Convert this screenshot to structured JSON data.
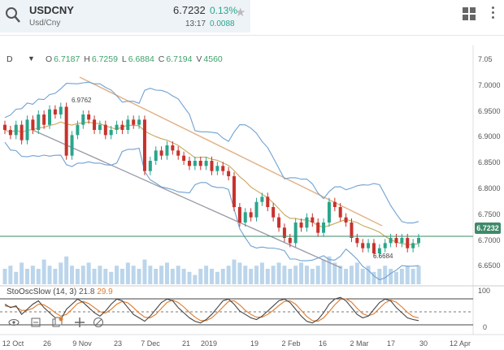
{
  "header": {
    "symbol": "USDCNY",
    "description": "Usd/Cny",
    "price": "6.7232",
    "change_pct": "0.13%",
    "time": "13:17",
    "change_abs": "0.0088",
    "icons": [
      "search-icon",
      "star-icon",
      "grid-icon",
      "more-vertical-icon"
    ]
  },
  "ohlc": {
    "interval": "D",
    "open_label": "O",
    "open": "6.7187",
    "high_label": "H",
    "high": "6.7259",
    "low_label": "L",
    "low": "6.6884",
    "close_label": "C",
    "close": "6.7194",
    "volume_label": "V",
    "volume": "4560"
  },
  "oscillator": {
    "name": "StoOscSlow (14, 3)",
    "k": "21.8",
    "d": "29.9",
    "scale_top": "100",
    "scale_bottom": "0"
  },
  "price_tag": "6.7232",
  "annotations": {
    "high_marker": "6.9762",
    "low_marker": "6.6684"
  },
  "colors": {
    "up": "#2aa58b",
    "candle": "#c8322c",
    "band": "#6fa1d2",
    "ma": "#c9a85a",
    "trend": "#e4b48a",
    "channel": "#9a9aa8",
    "volume": "#aacbe6",
    "stoch_k": "#444444",
    "stoch_d": "#e07a2b"
  },
  "chart_data": {
    "type": "candlestick",
    "yaxis_ticks": [
      "7.05",
      "7.0000",
      "6.9500",
      "6.9000",
      "6.8500",
      "6.8000",
      "6.7500",
      "6.7000",
      "6.6500"
    ],
    "xaxis_ticks": [
      "12 Oct",
      "26",
      "9 Nov",
      "23",
      "7 Dec",
      "21",
      "2019",
      "19",
      "2 Feb",
      "16",
      "2 Mar",
      "17",
      "30",
      "12 Apr"
    ],
    "ylim": [
      6.63,
      7.05
    ],
    "last_price": 6.7232,
    "close_series": [
      6.93,
      6.92,
      6.94,
      6.91,
      6.95,
      6.93,
      6.96,
      6.94,
      6.97,
      6.96,
      6.975,
      6.88,
      6.92,
      6.94,
      6.96,
      6.95,
      6.93,
      6.94,
      6.92,
      6.93,
      6.94,
      6.93,
      6.95,
      6.94,
      6.95,
      6.85,
      6.87,
      6.89,
      6.88,
      6.9,
      6.89,
      6.88,
      6.87,
      6.86,
      6.87,
      6.86,
      6.87,
      6.85,
      6.86,
      6.85,
      6.84,
      6.78,
      6.75,
      6.77,
      6.76,
      6.79,
      6.8,
      6.78,
      6.76,
      6.74,
      6.72,
      6.71,
      6.75,
      6.74,
      6.76,
      6.75,
      6.73,
      6.75,
      6.79,
      6.78,
      6.76,
      6.75,
      6.72,
      6.71,
      6.7,
      6.71,
      6.69,
      6.7,
      6.71,
      6.72,
      6.71,
      6.72,
      6.7,
      6.71,
      6.72
    ],
    "volume_series": [
      0.5,
      0.6,
      0.4,
      0.7,
      0.5,
      0.6,
      0.5,
      0.8,
      0.6,
      0.5,
      0.7,
      0.9,
      0.6,
      0.5,
      0.6,
      0.7,
      0.5,
      0.6,
      0.5,
      0.4,
      0.6,
      0.5,
      0.7,
      0.6,
      0.5,
      0.8,
      0.6,
      0.5,
      0.6,
      0.7,
      0.5,
      0.6,
      0.5,
      0.4,
      0.3,
      0.5,
      0.6,
      0.5,
      0.4,
      0.5,
      0.6,
      0.8,
      0.7,
      0.6,
      0.5,
      0.6,
      0.7,
      0.5,
      0.6,
      0.7,
      0.6,
      0.5,
      0.6,
      0.7,
      0.6,
      0.5,
      0.6,
      0.8,
      0.9,
      0.7,
      0.6,
      0.5,
      0.6,
      0.7,
      0.5,
      0.6,
      0.4,
      0.5,
      0.6,
      0.5,
      0.4,
      0.5,
      0.6,
      0.5,
      0.6
    ],
    "stoch_k": [
      70,
      60,
      65,
      40,
      55,
      70,
      80,
      60,
      45,
      30,
      25,
      55,
      70,
      85,
      75,
      60,
      45,
      35,
      50,
      70,
      85,
      80,
      60,
      40,
      30,
      20,
      35,
      55,
      75,
      85,
      80,
      60,
      45,
      30,
      20,
      15,
      25,
      40,
      60,
      80,
      85,
      70,
      50,
      40,
      30,
      25,
      35,
      50,
      65,
      80,
      85,
      75,
      55,
      35,
      20,
      15,
      25,
      45,
      70,
      85,
      90,
      80,
      60,
      40,
      30,
      35,
      55,
      75,
      85,
      80,
      60,
      45,
      30,
      25,
      22
    ],
    "stoch_d": [
      65,
      62,
      62,
      52,
      52,
      58,
      70,
      68,
      58,
      45,
      35,
      40,
      55,
      72,
      78,
      72,
      60,
      48,
      44,
      55,
      70,
      78,
      74,
      60,
      44,
      32,
      30,
      40,
      58,
      75,
      82,
      75,
      62,
      46,
      32,
      22,
      22,
      30,
      45,
      62,
      78,
      80,
      68,
      52,
      40,
      32,
      32,
      40,
      52,
      66,
      78,
      80,
      70,
      52,
      34,
      22,
      20,
      30,
      48,
      68,
      84,
      86,
      76,
      58,
      42,
      36,
      42,
      58,
      74,
      82,
      76,
      62,
      46,
      34,
      29.9
    ]
  }
}
